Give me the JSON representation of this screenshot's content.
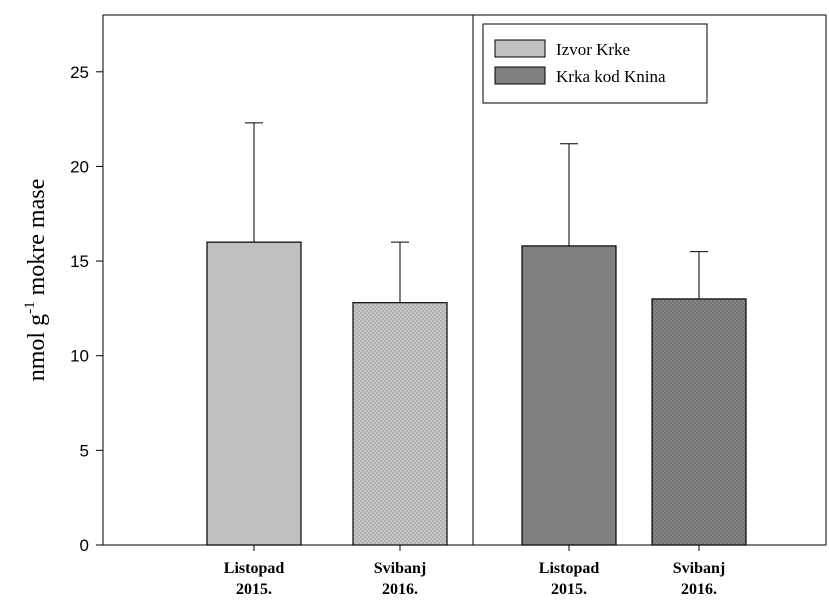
{
  "chart_data": {
    "type": "bar",
    "ylabel": {
      "main": "nmol g",
      "sup": "-1",
      "rest": " mokre mase"
    },
    "ylim": [
      0,
      28
    ],
    "yticks": [
      0,
      5,
      10,
      15,
      20,
      25
    ],
    "categories": [
      {
        "line1": "Listopad",
        "line2": "2015."
      },
      {
        "line1": "Svibanj",
        "line2": "2016."
      },
      {
        "line1": "Listopad",
        "line2": "2015."
      },
      {
        "line1": "Svibanj",
        "line2": "2016."
      }
    ],
    "series": [
      {
        "name": "Izvor Krke",
        "color": "#c0c0c0"
      },
      {
        "name": "Krka kod Knina",
        "color": "#808080"
      }
    ],
    "bars": [
      {
        "series": 0,
        "value": 16.0,
        "error": 6.3,
        "pattern": "solid"
      },
      {
        "series": 0,
        "value": 12.8,
        "error": 3.2,
        "pattern": "dotted"
      },
      {
        "series": 1,
        "value": 15.8,
        "error": 5.4,
        "pattern": "solid"
      },
      {
        "series": 1,
        "value": 13.0,
        "error": 2.5,
        "pattern": "dotted"
      }
    ],
    "legend": "top-right",
    "grid": false,
    "group_separator": true
  }
}
